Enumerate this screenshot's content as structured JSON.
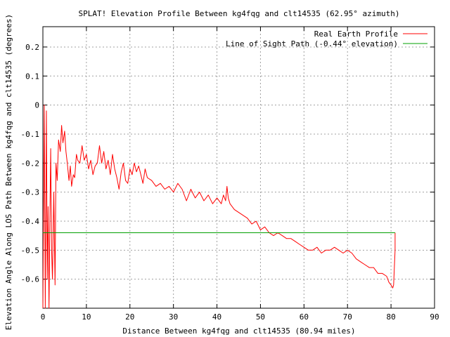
{
  "chart_data": {
    "type": "line",
    "title": "SPLAT! Elevation Profile Between kg4fqg and clt14535 (62.95° azimuth)",
    "xlabel": "Distance Between kg4fqg and clt14535 (80.94 miles)",
    "ylabel": "Elevation Angle Along LOS Path Between kg4fqg and clt14535 (degrees)",
    "xlim": [
      0,
      90
    ],
    "ylim": [
      -0.7,
      0.27
    ],
    "x_ticks": [
      0,
      10,
      20,
      30,
      40,
      50,
      60,
      70,
      80,
      90
    ],
    "y_ticks": [
      -0.6,
      -0.5,
      -0.4,
      -0.3,
      -0.2,
      -0.1,
      0,
      0.1,
      0.2
    ],
    "x_tick_labels": [
      "0",
      "10",
      "20",
      "30",
      "40",
      "50",
      "60",
      "70",
      "80",
      "90"
    ],
    "y_tick_labels": [
      "-0.6",
      "-0.5",
      "-0.4",
      "-0.3",
      "-0.2",
      "-0.1",
      "0",
      "0.1",
      "0.2"
    ],
    "grid": true,
    "legend_position": "top-right",
    "series": [
      {
        "name": "Real Earth Profile",
        "color": "#ff0000",
        "x": [
          0.0,
          0.3,
          0.55,
          0.8,
          1.0,
          1.2,
          1.4,
          1.6,
          1.8,
          2.0,
          2.2,
          2.5,
          2.8,
          3.0,
          3.3,
          3.6,
          4.0,
          4.3,
          4.6,
          5.0,
          5.3,
          5.6,
          6.0,
          6.3,
          6.6,
          7.0,
          7.3,
          7.7,
          8.0,
          8.5,
          9.0,
          9.5,
          10.0,
          10.5,
          11.0,
          11.5,
          12.0,
          12.5,
          13.0,
          13.5,
          14.0,
          14.5,
          15.0,
          15.5,
          16.0,
          16.5,
          17.0,
          17.5,
          18.0,
          18.5,
          19.0,
          19.5,
          20.0,
          20.5,
          21.0,
          21.5,
          22.0,
          22.5,
          23.0,
          23.5,
          24.0,
          25.0,
          26.0,
          27.0,
          28.0,
          29.0,
          30.0,
          31.0,
          32.0,
          33.0,
          34.0,
          35.0,
          36.0,
          37.0,
          38.0,
          39.0,
          40.0,
          41.0,
          41.5,
          42.0,
          42.3,
          42.6,
          43.0,
          44.0,
          45.0,
          46.0,
          47.0,
          48.0,
          49.0,
          50.0,
          51.0,
          52.0,
          53.0,
          54.0,
          55.0,
          56.0,
          57.0,
          58.0,
          59.0,
          60.0,
          61.0,
          62.0,
          63.0,
          64.0,
          65.0,
          66.0,
          67.0,
          68.0,
          69.0,
          70.0,
          71.0,
          72.0,
          73.0,
          74.0,
          75.0,
          76.0,
          77.0,
          78.0,
          79.0,
          79.5,
          80.0,
          80.4,
          80.6,
          80.94,
          80.94
        ],
        "y": [
          -0.7,
          0.0,
          -0.7,
          -0.02,
          -0.6,
          -0.35,
          -0.7,
          -0.4,
          -0.15,
          -0.5,
          -0.6,
          -0.3,
          -0.62,
          -0.2,
          -0.26,
          -0.12,
          -0.16,
          -0.07,
          -0.13,
          -0.09,
          -0.16,
          -0.2,
          -0.26,
          -0.21,
          -0.28,
          -0.24,
          -0.25,
          -0.17,
          -0.19,
          -0.2,
          -0.14,
          -0.19,
          -0.17,
          -0.22,
          -0.19,
          -0.24,
          -0.21,
          -0.2,
          -0.14,
          -0.2,
          -0.16,
          -0.22,
          -0.19,
          -0.24,
          -0.17,
          -0.22,
          -0.25,
          -0.29,
          -0.23,
          -0.2,
          -0.26,
          -0.27,
          -0.22,
          -0.24,
          -0.2,
          -0.23,
          -0.21,
          -0.24,
          -0.27,
          -0.22,
          -0.25,
          -0.26,
          -0.28,
          -0.27,
          -0.29,
          -0.28,
          -0.3,
          -0.27,
          -0.29,
          -0.33,
          -0.29,
          -0.32,
          -0.3,
          -0.33,
          -0.31,
          -0.34,
          -0.32,
          -0.34,
          -0.31,
          -0.33,
          -0.28,
          -0.32,
          -0.34,
          -0.36,
          -0.37,
          -0.38,
          -0.39,
          -0.41,
          -0.4,
          -0.43,
          -0.42,
          -0.44,
          -0.45,
          -0.44,
          -0.45,
          -0.46,
          -0.46,
          -0.47,
          -0.48,
          -0.49,
          -0.5,
          -0.5,
          -0.49,
          -0.51,
          -0.5,
          -0.5,
          -0.49,
          -0.5,
          -0.51,
          -0.5,
          -0.51,
          -0.53,
          -0.54,
          -0.55,
          -0.56,
          -0.56,
          -0.58,
          -0.58,
          -0.59,
          -0.61,
          -0.62,
          -0.63,
          -0.62,
          -0.5,
          -0.44
        ]
      },
      {
        "name": "Line of Sight Path (-0.44° elevation)",
        "color": "#00a000",
        "x": [
          0,
          80.94
        ],
        "y": [
          -0.44,
          -0.44
        ]
      }
    ]
  }
}
